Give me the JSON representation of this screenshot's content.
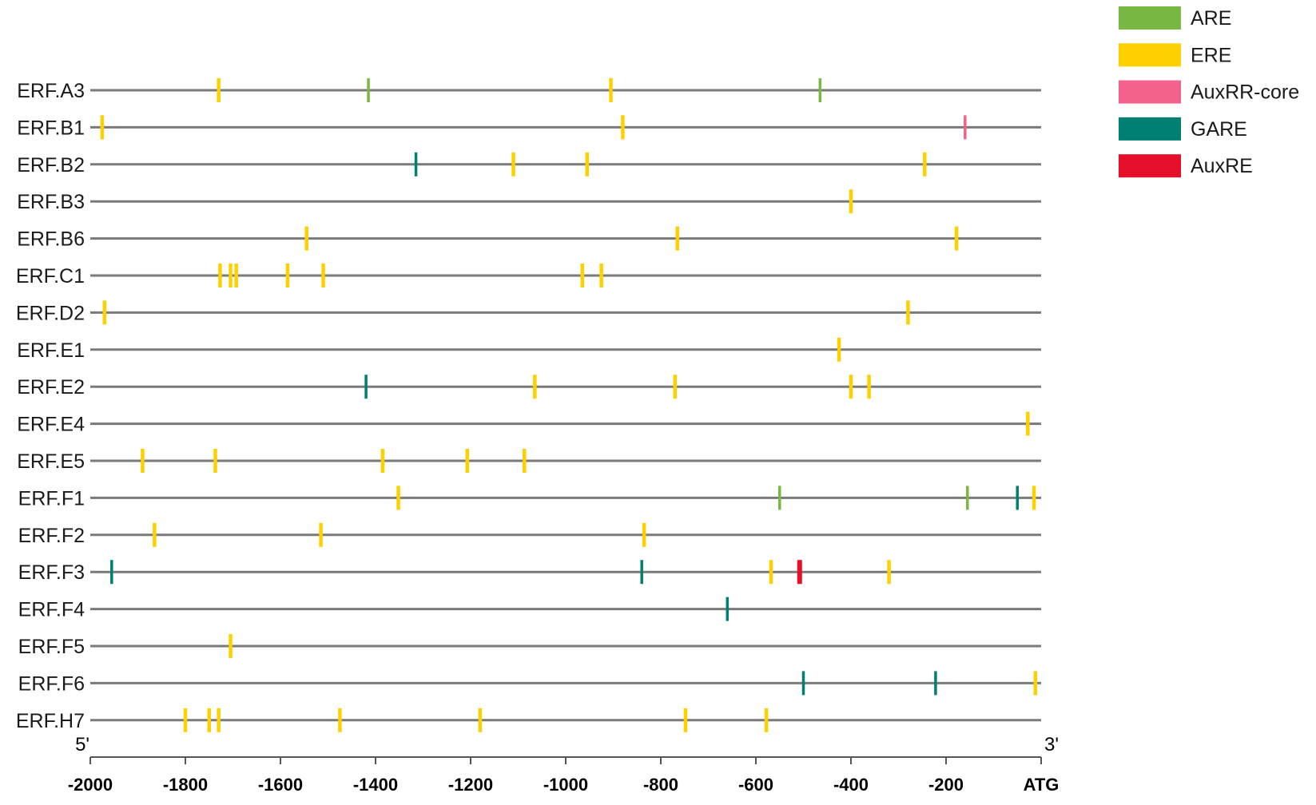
{
  "chart_data": {
    "type": "diagram",
    "xlim": [
      -2000,
      0
    ],
    "axis": {
      "left_end": "5'",
      "right_end": "3'",
      "ticks": [
        {
          "value": -2000,
          "label": "-2000"
        },
        {
          "value": -1800,
          "label": "-1800"
        },
        {
          "value": -1600,
          "label": "-1600"
        },
        {
          "value": -1400,
          "label": "-1400"
        },
        {
          "value": -1200,
          "label": "-1200"
        },
        {
          "value": -1000,
          "label": "-1000"
        },
        {
          "value": -800,
          "label": "-800"
        },
        {
          "value": -600,
          "label": "-600"
        },
        {
          "value": -400,
          "label": "-400"
        },
        {
          "value": -200,
          "label": "-200"
        },
        {
          "value": 0,
          "label": "ATG"
        }
      ]
    },
    "legend": {
      "placement": "top-right",
      "items": [
        {
          "key": "ARE",
          "label": "ARE",
          "color": "#78b843"
        },
        {
          "key": "ERE",
          "label": "ERE",
          "color": "#ffd000"
        },
        {
          "key": "AuxRR-core",
          "label": "AuxRR-core",
          "color": "#f2628a"
        },
        {
          "key": "GARE",
          "label": "GARE",
          "color": "#008073"
        },
        {
          "key": "AuxRE",
          "label": "AuxRE",
          "color": "#e60f2a"
        }
      ]
    },
    "genes": [
      {
        "name": "ERF.A3",
        "elements": [
          {
            "type": "ERE",
            "pos": -1730
          },
          {
            "type": "ARE",
            "pos": -1415
          },
          {
            "type": "ERE",
            "pos": -905
          },
          {
            "type": "ARE",
            "pos": -465
          }
        ]
      },
      {
        "name": "ERF.B1",
        "elements": [
          {
            "type": "ERE",
            "pos": -1975
          },
          {
            "type": "ERE",
            "pos": -880
          },
          {
            "type": "AuxRR-core",
            "pos": -160
          }
        ]
      },
      {
        "name": "ERF.B2",
        "elements": [
          {
            "type": "GARE",
            "pos": -1315
          },
          {
            "type": "ERE",
            "pos": -1110
          },
          {
            "type": "ERE",
            "pos": -955
          },
          {
            "type": "ERE",
            "pos": -245
          }
        ]
      },
      {
        "name": "ERF.B3",
        "elements": [
          {
            "type": "ERE",
            "pos": -400
          }
        ]
      },
      {
        "name": "ERF.B6",
        "elements": [
          {
            "type": "ERE",
            "pos": -1545
          },
          {
            "type": "ERE",
            "pos": -765
          },
          {
            "type": "ERE",
            "pos": -178
          }
        ]
      },
      {
        "name": "ERF.C1",
        "elements": [
          {
            "type": "ERE",
            "pos": -1727
          },
          {
            "type": "ERE",
            "pos": -1705
          },
          {
            "type": "ERE",
            "pos": -1693
          },
          {
            "type": "ERE",
            "pos": -1585
          },
          {
            "type": "ERE",
            "pos": -1510
          },
          {
            "type": "ERE",
            "pos": -965
          },
          {
            "type": "ERE",
            "pos": -925
          }
        ]
      },
      {
        "name": "ERF.D2",
        "elements": [
          {
            "type": "ERE",
            "pos": -1970
          },
          {
            "type": "ERE",
            "pos": -280
          }
        ]
      },
      {
        "name": "ERF.E1",
        "elements": [
          {
            "type": "ERE",
            "pos": -425
          }
        ]
      },
      {
        "name": "ERF.E2",
        "elements": [
          {
            "type": "GARE",
            "pos": -1420
          },
          {
            "type": "ERE",
            "pos": -1065
          },
          {
            "type": "ERE",
            "pos": -770
          },
          {
            "type": "ERE",
            "pos": -400
          },
          {
            "type": "ERE",
            "pos": -362
          }
        ]
      },
      {
        "name": "ERF.E4",
        "elements": [
          {
            "type": "ERE",
            "pos": -28
          }
        ]
      },
      {
        "name": "ERF.E5",
        "elements": [
          {
            "type": "ERE",
            "pos": -1890
          },
          {
            "type": "ERE",
            "pos": -1737
          },
          {
            "type": "ERE",
            "pos": -1385
          },
          {
            "type": "ERE",
            "pos": -1207
          },
          {
            "type": "ERE",
            "pos": -1087
          }
        ]
      },
      {
        "name": "ERF.F1",
        "elements": [
          {
            "type": "ERE",
            "pos": -1352
          },
          {
            "type": "ARE",
            "pos": -550
          },
          {
            "type": "ARE",
            "pos": -155
          },
          {
            "type": "GARE",
            "pos": -50
          },
          {
            "type": "ERE",
            "pos": -15
          }
        ]
      },
      {
        "name": "ERF.F2",
        "elements": [
          {
            "type": "ERE",
            "pos": -1865
          },
          {
            "type": "ERE",
            "pos": -1515
          },
          {
            "type": "ERE",
            "pos": -835
          }
        ]
      },
      {
        "name": "ERF.F3",
        "elements": [
          {
            "type": "GARE",
            "pos": -1955
          },
          {
            "type": "GARE",
            "pos": -840
          },
          {
            "type": "ERE",
            "pos": -568
          },
          {
            "type": "AuxRE",
            "pos": -508
          },
          {
            "type": "ERE",
            "pos": -320
          }
        ]
      },
      {
        "name": "ERF.F4",
        "elements": [
          {
            "type": "GARE",
            "pos": -660
          }
        ]
      },
      {
        "name": "ERF.F5",
        "elements": [
          {
            "type": "ERE",
            "pos": -1705
          }
        ]
      },
      {
        "name": "ERF.F6",
        "elements": [
          {
            "type": "GARE",
            "pos": -500
          },
          {
            "type": "GARE",
            "pos": -222
          },
          {
            "type": "ERE",
            "pos": -12
          }
        ]
      },
      {
        "name": "ERF.H7",
        "elements": [
          {
            "type": "ERE",
            "pos": -1800
          },
          {
            "type": "ERE",
            "pos": -1750
          },
          {
            "type": "ERE",
            "pos": -1730
          },
          {
            "type": "ERE",
            "pos": -1475
          },
          {
            "type": "ERE",
            "pos": -1180
          },
          {
            "type": "ERE",
            "pos": -748
          },
          {
            "type": "ERE",
            "pos": -578
          }
        ]
      }
    ]
  }
}
